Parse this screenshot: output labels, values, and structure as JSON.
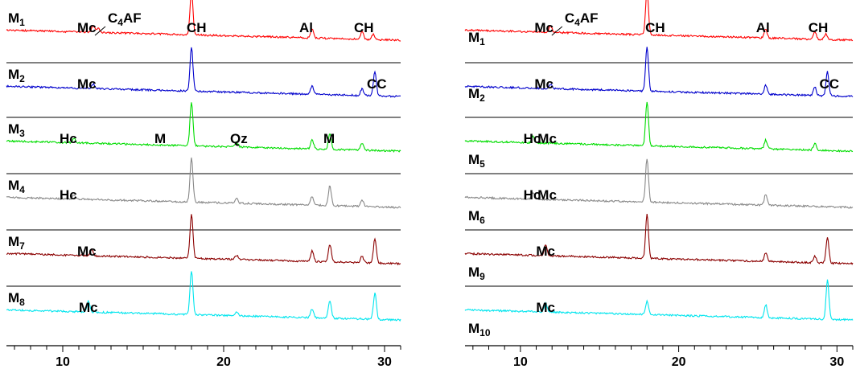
{
  "chart_data": [
    {
      "type": "line",
      "title": "",
      "xlabel": "",
      "ylabel": "",
      "xlim": [
        6.5,
        31
      ],
      "xticks": [
        10,
        20,
        30
      ],
      "xtick_labels": [
        "10",
        "20",
        "30"
      ],
      "series": [
        {
          "name": "M1",
          "label_main": "M",
          "label_sub": "1",
          "color": "#ff0000",
          "peaks": [
            [
              11.9,
              0.15
            ],
            [
              12.2,
              0.1
            ],
            [
              18.0,
              1.0
            ],
            [
              25.5,
              0.2
            ],
            [
              28.6,
              0.18
            ],
            [
              29.3,
              0.12
            ]
          ],
          "annotations": [
            {
              "main": "Mc",
              "sub": "",
              "x": 11.5
            },
            {
              "main": "C",
              "sub": "4",
              "tail": "AF",
              "x": 13.1,
              "leader": true
            },
            {
              "main": "CH",
              "sub": "",
              "x": 18.3
            },
            {
              "main": "Al",
              "sub": "",
              "x": 25.3
            },
            {
              "main": "CH",
              "sub": "",
              "x": 28.7
            }
          ]
        },
        {
          "name": "M2",
          "label_main": "M",
          "label_sub": "2",
          "color": "#0000cc",
          "peaks": [
            [
              11.9,
              0.1
            ],
            [
              18.0,
              1.0
            ],
            [
              25.5,
              0.2
            ],
            [
              28.6,
              0.15
            ],
            [
              29.4,
              0.55
            ]
          ],
          "annotations": [
            {
              "main": "Mc",
              "sub": "",
              "x": 11.5
            },
            {
              "main": "CC",
              "sub": "",
              "x": 29.5
            }
          ]
        },
        {
          "name": "M3",
          "label_main": "M",
          "label_sub": "3",
          "color": "#00dd00",
          "peaks": [
            [
              10.7,
              0.1
            ],
            [
              18.0,
              1.0
            ],
            [
              20.8,
              0.1
            ],
            [
              25.5,
              0.2
            ],
            [
              26.6,
              0.35
            ],
            [
              28.6,
              0.15
            ]
          ],
          "annotations": [
            {
              "main": "Hc",
              "sub": "",
              "x": 10.4
            },
            {
              "main": "M",
              "sub": "",
              "x": 16.0
            },
            {
              "main": "Qz",
              "sub": "",
              "x": 21.0
            },
            {
              "main": "M",
              "sub": "",
              "x": 26.5
            }
          ]
        },
        {
          "name": "M4",
          "label_main": "M",
          "label_sub": "4",
          "color": "#888888",
          "peaks": [
            [
              10.7,
              0.1
            ],
            [
              18.0,
              1.0
            ],
            [
              20.8,
              0.1
            ],
            [
              25.5,
              0.2
            ],
            [
              26.6,
              0.45
            ],
            [
              28.6,
              0.15
            ]
          ],
          "annotations": [
            {
              "main": "Hc",
              "sub": "",
              "x": 10.4
            }
          ]
        },
        {
          "name": "M7",
          "label_main": "M",
          "label_sub": "7",
          "color": "#8b0000",
          "peaks": [
            [
              11.8,
              0.15
            ],
            [
              18.0,
              1.0
            ],
            [
              20.8,
              0.1
            ],
            [
              25.5,
              0.25
            ],
            [
              26.6,
              0.4
            ],
            [
              28.6,
              0.15
            ],
            [
              29.4,
              0.55
            ]
          ],
          "annotations": [
            {
              "main": "Mc",
              "sub": "",
              "x": 11.5
            }
          ]
        },
        {
          "name": "M8",
          "label_main": "M",
          "label_sub": "8",
          "color": "#00e5ee",
          "peaks": [
            [
              11.6,
              0.25
            ],
            [
              18.0,
              1.0
            ],
            [
              20.8,
              0.1
            ],
            [
              25.5,
              0.2
            ],
            [
              26.6,
              0.4
            ],
            [
              29.4,
              0.6
            ]
          ],
          "annotations": [
            {
              "main": "Mc",
              "sub": "",
              "x": 11.6
            }
          ]
        }
      ]
    },
    {
      "type": "line",
      "title": "",
      "xlabel": "",
      "ylabel": "",
      "xlim": [
        6.5,
        31
      ],
      "xticks": [
        10,
        20,
        30
      ],
      "xtick_labels": [
        "10",
        "20",
        "30"
      ],
      "series": [
        {
          "name": "M1",
          "label_main": "M",
          "label_sub": "1",
          "color": "#ff0000",
          "peaks": [
            [
              11.9,
              0.15
            ],
            [
              18.0,
              1.0
            ],
            [
              25.5,
              0.2
            ],
            [
              28.6,
              0.18
            ],
            [
              29.3,
              0.12
            ]
          ],
          "annotations": [
            {
              "main": "Mc",
              "sub": "",
              "x": 11.5
            },
            {
              "main": "C",
              "sub": "4",
              "tail": "AF",
              "x": 13.1,
              "leader": true
            },
            {
              "main": "CH",
              "sub": "",
              "x": 18.5
            },
            {
              "main": "Al",
              "sub": "",
              "x": 25.5
            },
            {
              "main": "CH",
              "sub": "",
              "x": 28.8
            }
          ]
        },
        {
          "name": "M2",
          "label_main": "M",
          "label_sub": "2",
          "color": "#0000cc",
          "peaks": [
            [
              11.9,
              0.1
            ],
            [
              18.0,
              1.0
            ],
            [
              25.5,
              0.2
            ],
            [
              28.6,
              0.2
            ],
            [
              29.4,
              0.55
            ]
          ],
          "annotations": [
            {
              "main": "Mc",
              "sub": "",
              "x": 11.5
            },
            {
              "main": "CC",
              "sub": "",
              "x": 29.5
            }
          ]
        },
        {
          "name": "M5",
          "label_main": "M",
          "label_sub": "5",
          "color": "#00dd00",
          "peaks": [
            [
              10.8,
              0.15
            ],
            [
              18.0,
              1.0
            ],
            [
              25.5,
              0.2
            ],
            [
              28.6,
              0.15
            ]
          ],
          "annotations": [
            {
              "main": "Hc",
              "sub": "",
              "x": 10.8
            },
            {
              "main": "Mc",
              "sub": "",
              "x": 11.7
            }
          ]
        },
        {
          "name": "M6",
          "label_main": "M",
          "label_sub": "6",
          "color": "#888888",
          "peaks": [
            [
              10.8,
              0.15
            ],
            [
              18.0,
              1.0
            ],
            [
              25.5,
              0.25
            ]
          ],
          "annotations": [
            {
              "main": "Hc",
              "sub": "",
              "x": 10.8
            },
            {
              "main": "Mc",
              "sub": "",
              "x": 11.7
            }
          ]
        },
        {
          "name": "M9",
          "label_main": "M",
          "label_sub": "9",
          "color": "#8b0000",
          "peaks": [
            [
              11.6,
              0.25
            ],
            [
              18.0,
              1.0
            ],
            [
              25.5,
              0.2
            ],
            [
              28.6,
              0.15
            ],
            [
              29.4,
              0.6
            ]
          ],
          "annotations": [
            {
              "main": "Mc",
              "sub": "",
              "x": 11.6
            }
          ]
        },
        {
          "name": "M10",
          "label_main": "M",
          "label_sub": "10",
          "color": "#00e5ee",
          "peaks": [
            [
              11.6,
              0.2
            ],
            [
              18.0,
              0.3
            ],
            [
              25.5,
              0.3
            ],
            [
              29.4,
              0.9
            ]
          ],
          "annotations": [
            {
              "main": "Mc",
              "sub": "",
              "x": 11.6
            }
          ]
        }
      ]
    }
  ]
}
